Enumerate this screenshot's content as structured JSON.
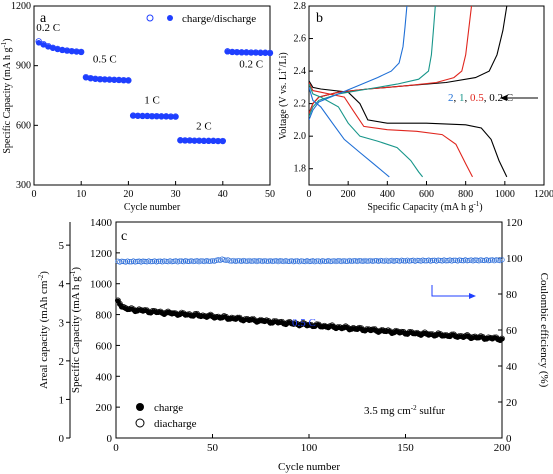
{
  "chart_data": [
    {
      "panel": "a",
      "type": "scatter",
      "xlabel": "Cycle number",
      "ylabel": "Specific Capacity (mA h g",
      "ylabel_sup": "-1",
      "ylabel_close": ")",
      "xlim": [
        0,
        50
      ],
      "ylim": [
        300,
        1200
      ],
      "xticks": [
        0,
        10,
        20,
        30,
        40,
        50
      ],
      "yticks": [
        300,
        600,
        900,
        1200
      ],
      "legend": {
        "open_label": "",
        "filled_label": "charge/discharge",
        "position": "top-right"
      },
      "rate_labels": [
        {
          "text": "0.2 C",
          "x": 3,
          "y": 1075
        },
        {
          "text": "0.5 C",
          "x": 15,
          "y": 915
        },
        {
          "text": "1 C",
          "x": 25,
          "y": 710
        },
        {
          "text": "2 C",
          "x": 36,
          "y": 578
        },
        {
          "text": "0.2 C",
          "x": 46,
          "y": 890
        }
      ],
      "series": [
        {
          "name": "charge",
          "marker": "filled",
          "x": [
            1,
            2,
            3,
            4,
            5,
            6,
            7,
            8,
            9,
            10,
            11,
            12,
            13,
            14,
            15,
            16,
            17,
            18,
            19,
            20,
            21,
            22,
            23,
            24,
            25,
            26,
            27,
            28,
            29,
            30,
            31,
            32,
            33,
            34,
            35,
            36,
            37,
            38,
            39,
            40,
            41,
            42,
            43,
            44,
            45,
            46,
            47,
            48,
            49,
            50
          ],
          "values": [
            1015,
            1005,
            995,
            988,
            982,
            978,
            975,
            972,
            970,
            968,
            840,
            836,
            833,
            831,
            830,
            829,
            828,
            827,
            826,
            825,
            648,
            647,
            646,
            646,
            645,
            645,
            644,
            644,
            643,
            643,
            524,
            523,
            523,
            522,
            522,
            521,
            521,
            521,
            520,
            520,
            970,
            968,
            967,
            966,
            966,
            965,
            965,
            964,
            964,
            963
          ]
        },
        {
          "name": "discharge",
          "marker": "open",
          "x": [
            1,
            2,
            3,
            4,
            5,
            6,
            7,
            8,
            9,
            10,
            11,
            12,
            13,
            14,
            15,
            16,
            17,
            18,
            19,
            20,
            21,
            22,
            23,
            24,
            25,
            26,
            27,
            28,
            29,
            30,
            31,
            32,
            33,
            34,
            35,
            36,
            37,
            38,
            39,
            40,
            41,
            42,
            43,
            44,
            45,
            46,
            47,
            48,
            49,
            50
          ],
          "values": [
            1022,
            1008,
            998,
            990,
            984,
            979,
            976,
            973,
            971,
            969,
            842,
            837,
            834,
            832,
            831,
            830,
            829,
            828,
            827,
            826,
            649,
            648,
            647,
            647,
            646,
            646,
            645,
            645,
            644,
            644,
            525,
            524,
            524,
            523,
            523,
            522,
            522,
            522,
            521,
            521,
            972,
            969,
            968,
            967,
            967,
            966,
            966,
            965,
            965,
            964
          ]
        }
      ]
    },
    {
      "panel": "b",
      "type": "line",
      "xlabel": "Specific Capacity (mA h g",
      "xlabel_sup": "-1",
      "xlabel_close": ")",
      "ylabel_pre": "Voltage (V vs. Li",
      "ylabel_sup": "+",
      "ylabel_mid": "/Li",
      "ylabel_close": ")",
      "xlim": [
        0,
        1200
      ],
      "ylim": [
        1.7,
        2.8
      ],
      "xticks": [
        0,
        200,
        400,
        600,
        800,
        1000,
        1200
      ],
      "yticks": [
        1.8,
        2.0,
        2.2,
        2.4,
        2.6,
        2.8
      ],
      "rate_legend": [
        {
          "text": "2",
          "color": "#1f6fd6"
        },
        {
          "text": ", ",
          "color": "#000000"
        },
        {
          "text": "1",
          "color": "#18968a"
        },
        {
          "text": ", ",
          "color": "#000000"
        },
        {
          "text": "0.5",
          "color": "#e0261e"
        },
        {
          "text": ", ",
          "color": "#000000"
        },
        {
          "text": "0.2 C",
          "color": "#000000"
        }
      ],
      "series": [
        {
          "name": "0.2 C",
          "color": "#000000",
          "charge": [
            [
              0,
              2.14
            ],
            [
              20,
              2.2
            ],
            [
              50,
              2.24
            ],
            [
              150,
              2.27
            ],
            [
              300,
              2.29
            ],
            [
              500,
              2.31
            ],
            [
              700,
              2.33
            ],
            [
              850,
              2.36
            ],
            [
              920,
              2.4
            ],
            [
              960,
              2.5
            ],
            [
              990,
              2.65
            ],
            [
              1010,
              2.8
            ]
          ],
          "discharge": [
            [
              0,
              2.34
            ],
            [
              20,
              2.3
            ],
            [
              60,
              2.29
            ],
            [
              200,
              2.27
            ],
            [
              260,
              2.2
            ],
            [
              300,
              2.1
            ],
            [
              400,
              2.08
            ],
            [
              600,
              2.08
            ],
            [
              800,
              2.07
            ],
            [
              880,
              2.05
            ],
            [
              930,
              1.98
            ],
            [
              970,
              1.85
            ],
            [
              1010,
              1.75
            ]
          ]
        },
        {
          "name": "0.5 C",
          "color": "#e0261e",
          "charge": [
            [
              0,
              2.14
            ],
            [
              20,
              2.2
            ],
            [
              50,
              2.24
            ],
            [
              150,
              2.27
            ],
            [
              300,
              2.29
            ],
            [
              500,
              2.31
            ],
            [
              650,
              2.33
            ],
            [
              740,
              2.36
            ],
            [
              780,
              2.4
            ],
            [
              800,
              2.5
            ],
            [
              815,
              2.65
            ],
            [
              830,
              2.8
            ]
          ],
          "discharge": [
            [
              0,
              2.33
            ],
            [
              20,
              2.28
            ],
            [
              60,
              2.27
            ],
            [
              180,
              2.24
            ],
            [
              230,
              2.15
            ],
            [
              280,
              2.06
            ],
            [
              400,
              2.04
            ],
            [
              550,
              2.03
            ],
            [
              680,
              2.01
            ],
            [
              750,
              1.95
            ],
            [
              800,
              1.83
            ],
            [
              835,
              1.75
            ]
          ]
        },
        {
          "name": "1 C",
          "color": "#18968a",
          "charge": [
            [
              0,
              2.12
            ],
            [
              20,
              2.18
            ],
            [
              50,
              2.22
            ],
            [
              150,
              2.26
            ],
            [
              300,
              2.29
            ],
            [
              450,
              2.32
            ],
            [
              560,
              2.35
            ],
            [
              610,
              2.4
            ],
            [
              625,
              2.5
            ],
            [
              635,
              2.65
            ],
            [
              645,
              2.8
            ]
          ],
          "discharge": [
            [
              0,
              2.32
            ],
            [
              20,
              2.26
            ],
            [
              60,
              2.24
            ],
            [
              150,
              2.18
            ],
            [
              200,
              2.08
            ],
            [
              260,
              2.0
            ],
            [
              350,
              1.97
            ],
            [
              450,
              1.93
            ],
            [
              520,
              1.85
            ],
            [
              560,
              1.78
            ],
            [
              580,
              1.75
            ]
          ]
        },
        {
          "name": "2 C",
          "color": "#1f6fd6",
          "charge": [
            [
              0,
              2.1
            ],
            [
              20,
              2.16
            ],
            [
              50,
              2.21
            ],
            [
              150,
              2.26
            ],
            [
              250,
              2.31
            ],
            [
              350,
              2.36
            ],
            [
              420,
              2.4
            ],
            [
              460,
              2.45
            ],
            [
              480,
              2.55
            ],
            [
              490,
              2.67
            ],
            [
              500,
              2.8
            ]
          ],
          "discharge": [
            [
              0,
              2.3
            ],
            [
              20,
              2.22
            ],
            [
              60,
              2.18
            ],
            [
              120,
              2.08
            ],
            [
              180,
              1.98
            ],
            [
              260,
              1.9
            ],
            [
              330,
              1.83
            ],
            [
              380,
              1.78
            ],
            [
              410,
              1.75
            ]
          ]
        }
      ]
    },
    {
      "panel": "c",
      "type": "scatter",
      "xlabel": "Cycle number",
      "ylabel": "Specific Capacity (mA h g",
      "ylabel_sup": "-1",
      "ylabel_close": ")",
      "ylabel_left2": "Areal capacity (mAh cm",
      "ylabel_left2_sup": "-2",
      "ylabel_left2_close": ")",
      "ylabel_right": "Coulombic efficiency (%)",
      "xlim": [
        0,
        200
      ],
      "ylim": [
        0,
        1400
      ],
      "ylim_areal": [
        0,
        5.6
      ],
      "ylim_right": [
        0,
        120
      ],
      "xticks": [
        0,
        50,
        100,
        150,
        200
      ],
      "yticks": [
        0,
        200,
        400,
        600,
        800,
        1000,
        1200,
        1400
      ],
      "yticks_areal": [
        0,
        1,
        2,
        3,
        4,
        5
      ],
      "yticks_right": [
        0,
        20,
        40,
        60,
        80,
        100,
        120
      ],
      "rate_label": "0.5 C",
      "loading_label_pre": "3.5 mg cm",
      "loading_label_sup": "-2",
      "loading_label_post": " sulfur",
      "legend": [
        {
          "label": "charge",
          "marker": "filled"
        },
        {
          "label": "diacharge",
          "marker": "open"
        }
      ],
      "capacity_trend": {
        "x": [
          1,
          5,
          20,
          50,
          100,
          150,
          200
        ],
        "y": [
          880,
          835,
          815,
          785,
          730,
          680,
          640
        ]
      },
      "ce_trend": {
        "x": [
          1,
          50,
          55,
          60,
          100,
          150,
          200
        ],
        "y": [
          98.0,
          98.3,
          99.2,
          98.4,
          98.2,
          98.5,
          98.8
        ]
      },
      "series_color_ce": "#2f6fd9"
    }
  ]
}
